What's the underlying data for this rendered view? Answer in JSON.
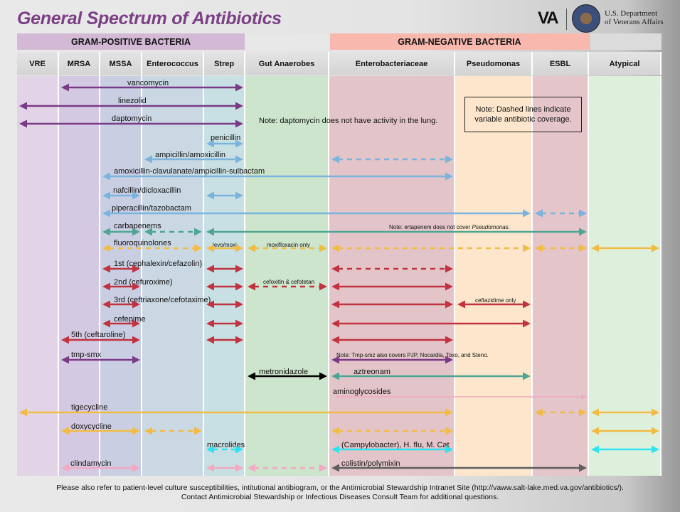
{
  "title": "General Spectrum of Antibiotics",
  "logo": {
    "mark": "VA",
    "dept_line1": "U.S. Department",
    "dept_line2": "of Veterans Affairs"
  },
  "groups": {
    "gram_positive": "GRAM-POSITIVE BACTERIA",
    "gram_negative": "GRAM-NEGATIVE BACTERIA"
  },
  "columns": [
    "VRE",
    "MRSA",
    "MSSA",
    "Enterococcus",
    "Strep",
    "Gut Anaerobes",
    "Enterobacteriaceae",
    "Pseudomonas",
    "ESBL",
    "Atypical"
  ],
  "colors": {
    "purple": "#7a3a85",
    "blue": "#7ab3de",
    "teal": "#4fa593",
    "yellow": "#f2bb44",
    "red": "#c0333f",
    "black": "#000000",
    "cyan": "#2ee3ef",
    "pink": "#f2a9c2",
    "gray": "#5e5e5e",
    "title": "#7b3f86",
    "gram_positive_header": "#d3b9d6",
    "gram_negative_header": "#f8b8ad"
  },
  "column_colors": [
    "#e3d3e6",
    "#d4c9e2",
    "#c9cee3",
    "#c9d8e3",
    "#c8e0e3",
    "#cce5cc",
    "#e3c5c9",
    "#fde6cc",
    "#e3c5ca",
    "#ddf0dc"
  ],
  "notes": {
    "daptomycin": "Note: daptomycin does not have activity in the lung.",
    "dashed_line1": "Note: Dashed lines indicate",
    "dashed_line2": "variable antibiotic coverage.",
    "ertapenem_prefix": "Note: ertapenem does not cover ",
    "ertapenem_organism": "Pseudomonas.",
    "tmp_smz": "Note: Tmp-smz also covers PJP, Nocardia, Toxo, and Steno."
  },
  "rows": [
    {
      "label": "vancomycin",
      "segs": [
        {
          "from": "MRSA",
          "to": "Strep",
          "color": "purple",
          "line": "solid"
        }
      ]
    },
    {
      "label": "linezolid",
      "segs": [
        {
          "from": "VRE",
          "to": "Strep",
          "color": "purple",
          "line": "solid"
        }
      ]
    },
    {
      "label": "daptomycin",
      "segs": [
        {
          "from": "VRE",
          "to": "Strep",
          "color": "purple",
          "line": "solid"
        }
      ]
    },
    {
      "label": "penicillin",
      "segs": [
        {
          "from": "Strep",
          "to": "Strep",
          "color": "blue",
          "line": "solid"
        }
      ]
    },
    {
      "label": "ampicillin/amoxicillin",
      "segs": [
        {
          "from": "Enterococcus",
          "to": "Strep",
          "color": "blue",
          "line": "solid"
        },
        {
          "from": "Enterobacteriaceae",
          "to": "Enterobacteriaceae",
          "color": "blue",
          "line": "dashed"
        }
      ]
    },
    {
      "label": "amoxicillin-clavulanate/ampicillin-sulbactam",
      "segs": [
        {
          "from": "MSSA",
          "to": "Enterobacteriaceae",
          "color": "blue",
          "line": "solid"
        }
      ]
    },
    {
      "label": "nafcillin/dicloxacillin",
      "segs": [
        {
          "from": "MSSA",
          "to": "MSSA",
          "color": "blue",
          "line": "solid"
        },
        {
          "from": "Strep",
          "to": "Strep",
          "color": "blue",
          "line": "solid"
        }
      ]
    },
    {
      "label": "piperacillin/tazobactam",
      "segs": [
        {
          "from": "MSSA",
          "to": "Pseudomonas",
          "color": "blue",
          "line": "solid"
        },
        {
          "from": "ESBL",
          "to": "ESBL",
          "color": "blue",
          "line": "dashed"
        }
      ]
    },
    {
      "label": "carbapenems",
      "segs": [
        {
          "from": "MSSA",
          "to": "MSSA",
          "color": "teal",
          "line": "solid"
        },
        {
          "from": "Enterococcus",
          "to": "Enterococcus",
          "color": "teal",
          "line": "dashed"
        },
        {
          "from": "Strep",
          "to": "ESBL",
          "color": "teal",
          "line": "solid"
        }
      ]
    },
    {
      "label": "fluoroquinolones",
      "segs": [
        {
          "from": "MSSA",
          "to": "Enterococcus",
          "color": "yellow",
          "line": "dashed"
        },
        {
          "from": "Strep",
          "to": "Strep",
          "color": "yellow",
          "line": "solid",
          "label": "levo/moxi-"
        },
        {
          "from": "Gut Anaerobes",
          "to": "Gut Anaerobes",
          "color": "yellow",
          "line": "dashed",
          "label": "moxifloxacin only"
        },
        {
          "from": "Enterobacteriaceae",
          "to": "Pseudomonas",
          "color": "yellow",
          "line": "dashed"
        },
        {
          "from": "ESBL",
          "to": "ESBL",
          "color": "yellow",
          "line": "dashed"
        },
        {
          "from": "Atypical",
          "to": "Atypical",
          "color": "yellow",
          "line": "solid"
        }
      ]
    },
    {
      "label": "1st (cephalexin/cefazolin)",
      "segs": [
        {
          "from": "MSSA",
          "to": "MSSA",
          "color": "red",
          "line": "solid"
        },
        {
          "from": "Strep",
          "to": "Strep",
          "color": "red",
          "line": "solid"
        },
        {
          "from": "Enterobacteriaceae",
          "to": "Enterobacteriaceae",
          "color": "red",
          "line": "dashed"
        }
      ]
    },
    {
      "label": "2nd (cefuroxime)",
      "segs": [
        {
          "from": "MSSA",
          "to": "MSSA",
          "color": "red",
          "line": "solid"
        },
        {
          "from": "Strep",
          "to": "Strep",
          "color": "red",
          "line": "solid"
        },
        {
          "from": "Gut Anaerobes",
          "to": "Gut Anaerobes",
          "color": "red",
          "line": "dashed",
          "label": "cefoxitin & cefotetan"
        },
        {
          "from": "Enterobacteriaceae",
          "to": "Enterobacteriaceae",
          "color": "red",
          "line": "solid"
        }
      ]
    },
    {
      "label": "3rd (ceftriaxone/cefotaxime)",
      "segs": [
        {
          "from": "MSSA",
          "to": "MSSA",
          "color": "red",
          "line": "solid"
        },
        {
          "from": "Strep",
          "to": "Strep",
          "color": "red",
          "line": "solid"
        },
        {
          "from": "Enterobacteriaceae",
          "to": "Enterobacteriaceae",
          "color": "red",
          "line": "solid"
        },
        {
          "from": "Pseudomonas",
          "to": "Pseudomonas",
          "color": "red",
          "line": "solid",
          "label": "ceftazidime only"
        }
      ]
    },
    {
      "label": "cefepime",
      "segs": [
        {
          "from": "MSSA",
          "to": "MSSA",
          "color": "red",
          "line": "solid"
        },
        {
          "from": "Strep",
          "to": "Strep",
          "color": "red",
          "line": "solid"
        },
        {
          "from": "Enterobacteriaceae",
          "to": "Pseudomonas",
          "color": "red",
          "line": "solid"
        }
      ]
    },
    {
      "label": "5th (ceftaroline)",
      "segs": [
        {
          "from": "MRSA",
          "to": "MSSA",
          "color": "red",
          "line": "solid"
        },
        {
          "from": "Strep",
          "to": "Strep",
          "color": "red",
          "line": "solid"
        },
        {
          "from": "Enterobacteriaceae",
          "to": "Enterobacteriaceae",
          "color": "red",
          "line": "solid"
        }
      ]
    },
    {
      "label": "tmp-smx",
      "segs": [
        {
          "from": "MRSA",
          "to": "MSSA",
          "color": "purple",
          "line": "solid"
        },
        {
          "from": "Enterobacteriaceae",
          "to": "Enterobacteriaceae",
          "color": "purple",
          "line": "solid"
        }
      ]
    },
    {
      "segs": [
        {
          "from": "Gut Anaerobes",
          "to": "Gut Anaerobes",
          "color": "black",
          "line": "solid",
          "label": "metronidazole"
        },
        {
          "from": "Enterobacteriaceae",
          "to": "Pseudomonas",
          "color": "teal",
          "line": "solid",
          "label": "aztreonam"
        }
      ]
    },
    {
      "segs": [
        {
          "from": "Enterobacteriaceae",
          "to": "ESBL",
          "color": "pink",
          "line": "thin",
          "label": "aminoglycosides"
        }
      ]
    },
    {
      "label": "tigecycline",
      "segs": [
        {
          "from": "VRE",
          "to": "Enterobacteriaceae",
          "color": "yellow",
          "line": "solid"
        },
        {
          "from": "ESBL",
          "to": "ESBL",
          "color": "yellow",
          "line": "dashed"
        },
        {
          "from": "Atypical",
          "to": "Atypical",
          "color": "yellow",
          "line": "solid"
        }
      ]
    },
    {
      "label": "doxycycline",
      "segs": [
        {
          "from": "MRSA",
          "to": "MSSA",
          "color": "yellow",
          "line": "solid"
        },
        {
          "from": "Enterococcus",
          "to": "Enterococcus",
          "color": "yellow",
          "line": "dashed"
        },
        {
          "from": "Enterobacteriaceae",
          "to": "Enterobacteriaceae",
          "color": "yellow",
          "line": "dashed"
        },
        {
          "from": "Atypical",
          "to": "Atypical",
          "color": "yellow",
          "line": "solid"
        }
      ]
    },
    {
      "segs": [
        {
          "from": "Strep",
          "to": "Strep",
          "color": "cyan",
          "line": "dashed",
          "label": "macrolides"
        },
        {
          "from": "Enterobacteriaceae",
          "to": "Enterobacteriaceae",
          "color": "cyan",
          "line": "solid",
          "label": "(Campylobacter), H. flu, M. Cat"
        },
        {
          "from": "Atypical",
          "to": "Atypical",
          "color": "cyan",
          "line": "solid"
        }
      ]
    },
    {
      "label": "clindamycin",
      "segs": [
        {
          "from": "MRSA",
          "to": "MSSA",
          "color": "pink",
          "line": "solid"
        },
        {
          "from": "Strep",
          "to": "Strep",
          "color": "pink",
          "line": "solid"
        },
        {
          "from": "Gut Anaerobes",
          "to": "Gut Anaerobes",
          "color": "pink",
          "line": "dashed"
        },
        {
          "from": "Enterobacteriaceae",
          "to": "ESBL",
          "color": "gray",
          "line": "solid",
          "label": "colistin/polymixin"
        }
      ]
    }
  ],
  "footer": {
    "line1": "Please also refer to patient-level culture susceptibilities, intitutional antibiogram, or the Antimicrobial Stewardship Intranet Site (http://vaww.salt-lake.med.va.gov/antibiotics/).",
    "line2": "Contact  Antimicrobial Stewardship or Infectious Diseases Consult Team for additional questions."
  }
}
